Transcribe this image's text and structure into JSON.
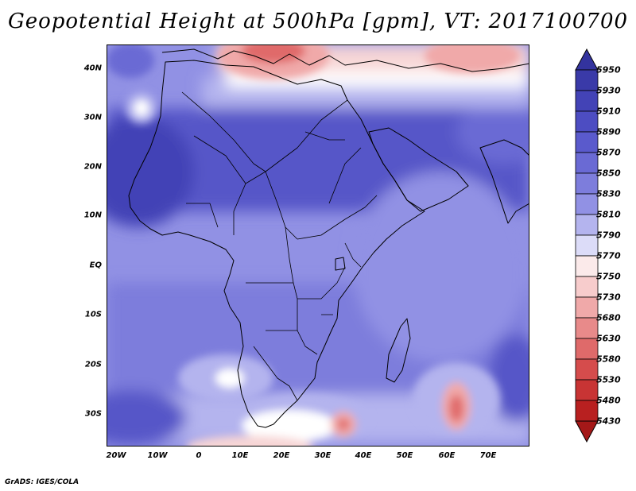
{
  "title": "Geopotential Height at 500hPa [gpm], VT: 2017100700",
  "credit": "GrADS: IGES/COLA",
  "latitude_labels": [
    "40N",
    "30N",
    "20N",
    "10N",
    "EQ",
    "10S",
    "20S",
    "30S"
  ],
  "longitude_labels": [
    "20W",
    "10W",
    "0",
    "10E",
    "20E",
    "30E",
    "40E",
    "50E",
    "60E",
    "70E"
  ],
  "colorbar": {
    "levels": [
      "5950",
      "5930",
      "5910",
      "5890",
      "5870",
      "5850",
      "5830",
      "5810",
      "5790",
      "5770",
      "5750",
      "5730",
      "5680",
      "5630",
      "5580",
      "5530",
      "5480",
      "5430"
    ],
    "colors": [
      "#3a3aa8",
      "#4343b6",
      "#4d4dc2",
      "#5a5acc",
      "#6a6ad4",
      "#7d7ddc",
      "#9191e4",
      "#b4b4ee",
      "#dcdcf8",
      "#fbeaea",
      "#f7cccc",
      "#f0a9a9",
      "#e88a8a",
      "#df6a6a",
      "#d54c4c",
      "#c83434",
      "#b82020"
    ],
    "top_arrow_color": "#33339e",
    "bottom_arrow_color": "#a41818"
  },
  "map_colors": {
    "very_high": "#4343b6",
    "high": "#5656c8",
    "mid": "#6a6ad4",
    "mid_light": "#7d7ddc",
    "light": "#9191e4",
    "pale": "#b4b4ee",
    "white": "#ffffff",
    "pink_pale": "#f7d6d6",
    "pink": "#f0a9a9",
    "red": "#e06a6a",
    "dark_red": "#cc3c3c"
  }
}
